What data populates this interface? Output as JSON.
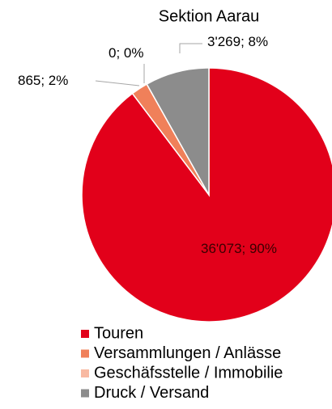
{
  "chart_data": {
    "type": "pie",
    "title": "Sektion Aarau",
    "categories": [
      "Touren",
      "Versammlungen / Anlässe",
      "Geschäfsstelle / Immobilie",
      "Druck / Versand"
    ],
    "values": [
      36073,
      865,
      0,
      3269
    ],
    "value_labels": [
      "36'073; 90%",
      "865; 2%",
      "0; 0%",
      "3'269; 8%"
    ],
    "colors": [
      "#e2001a",
      "#f0805a",
      "#f8b9a2",
      "#8c8c8c"
    ],
    "legend": "bottom"
  }
}
